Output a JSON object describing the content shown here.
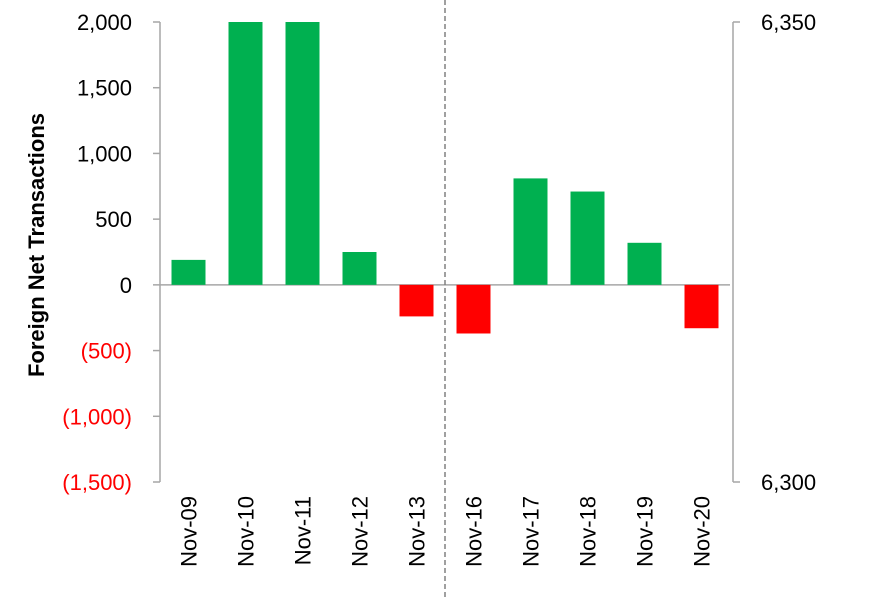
{
  "chart_data": {
    "type": "bar",
    "categories": [
      "Nov-09",
      "Nov-10",
      "Nov-11",
      "Nov-12",
      "Nov-13",
      "Nov-16",
      "Nov-17",
      "Nov-18",
      "Nov-19",
      "Nov-20"
    ],
    "values": [
      190,
      2000,
      2000,
      250,
      -240,
      -370,
      810,
      710,
      320,
      -330
    ],
    "ylabel": "Foreign Net Transactions",
    "ylim": [
      -1500,
      2000
    ],
    "yticks": [
      {
        "value": 2000,
        "label": "2,000"
      },
      {
        "value": 1500,
        "label": "1,500"
      },
      {
        "value": 1000,
        "label": "1,000"
      },
      {
        "value": 500,
        "label": "500"
      },
      {
        "value": 0,
        "label": "0"
      },
      {
        "value": -500,
        "label": "(500)"
      },
      {
        "value": -1000,
        "label": "(1,000)"
      },
      {
        "value": -1500,
        "label": "(1,500)"
      }
    ],
    "secondary_axis": {
      "ylim": [
        6300,
        6350
      ],
      "ticks": [
        {
          "value": 6350,
          "label": "6,350"
        },
        {
          "value": 6300,
          "label": "6,300"
        }
      ]
    },
    "divider_after_category": "Nov-13",
    "colors": {
      "positive": "#00b050",
      "negative": "#ff0000",
      "negative_label": "#ff0000",
      "axis": "#a6a6a6",
      "divider": "#808080"
    },
    "grid": false,
    "legend": "none"
  }
}
